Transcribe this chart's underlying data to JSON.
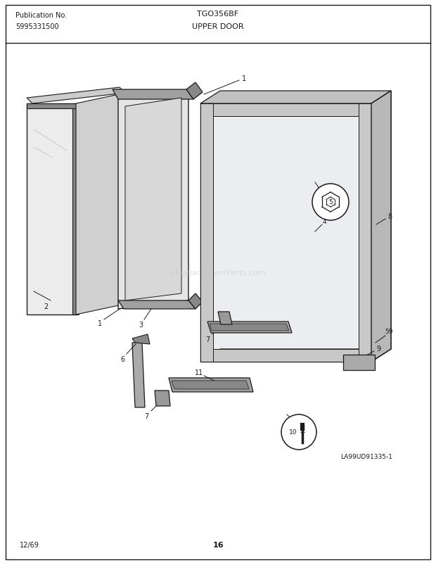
{
  "title_model": "TGO356BF",
  "title_section": "UPPER DOOR",
  "pub_label": "Publication No.",
  "pub_number": "5995331500",
  "date_code": "12/69",
  "page_number": "16",
  "diagram_id": "LA99UD91335-1",
  "watermark": "eReplacementParts.com",
  "bg_color": "#ffffff",
  "line_color": "#1a1a1a",
  "gray_light": "#d8d8d8",
  "gray_mid": "#b0b0b0",
  "gray_dark": "#888888",
  "gray_fill": "#e8e8e8"
}
